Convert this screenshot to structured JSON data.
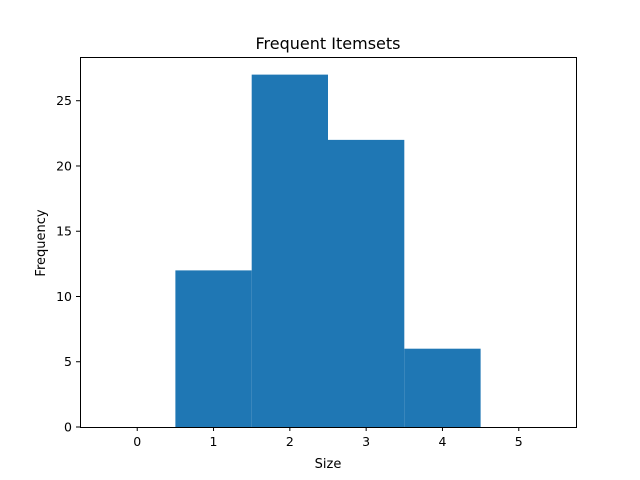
{
  "chart_data": {
    "type": "bar",
    "title": "Frequent Itemsets",
    "xlabel": "Size",
    "ylabel": "Frequency",
    "categories": [
      1,
      2,
      3,
      4
    ],
    "values": [
      12,
      27,
      22,
      6
    ],
    "bar_width": 1,
    "xlim": [
      -0.75,
      5.75
    ],
    "ylim": [
      0,
      28.35
    ],
    "xticks": [
      0,
      1,
      2,
      3,
      4,
      5
    ],
    "yticks": [
      0,
      5,
      10,
      15,
      20,
      25
    ],
    "color": "#1f77b4",
    "grid": false,
    "legend": "none"
  }
}
